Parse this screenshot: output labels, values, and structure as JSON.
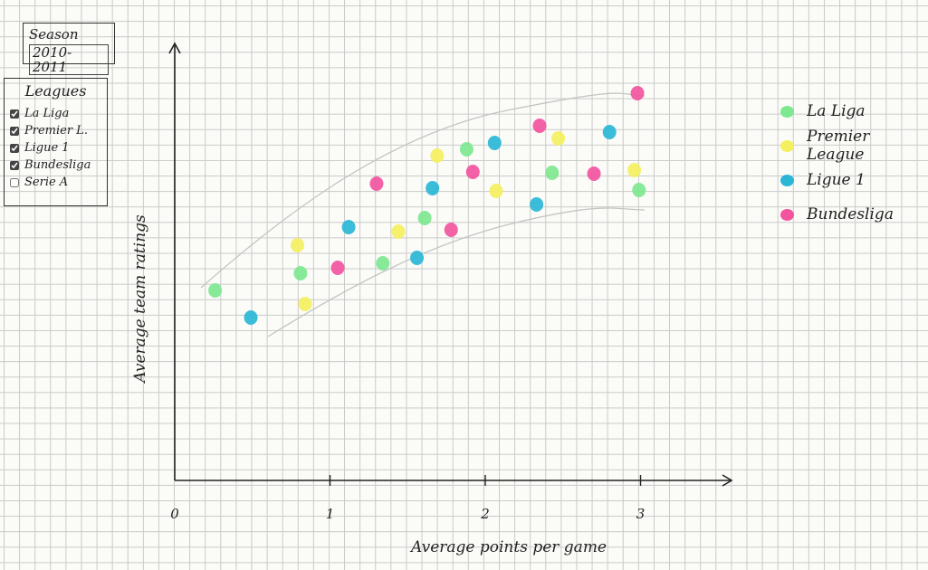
{
  "season": {
    "label": "Season",
    "value": "2010-2011"
  },
  "leagues_panel": {
    "title": "Leagues",
    "items": [
      {
        "label": "La Liga",
        "checked": true
      },
      {
        "label": "Premier L.",
        "checked": true
      },
      {
        "label": "Ligue 1",
        "checked": true
      },
      {
        "label": "Bundesliga",
        "checked": true
      },
      {
        "label": "Serie A",
        "checked": false
      }
    ]
  },
  "legend": [
    {
      "name": "La Liga",
      "color": "#7ee88f"
    },
    {
      "name": "Premier League",
      "color": "#f4f060"
    },
    {
      "name": "Ligue 1",
      "color": "#2ab7d6"
    },
    {
      "name": "Bundesliga",
      "color": "#f2559e"
    }
  ],
  "chart_data": {
    "type": "scatter",
    "xlabel": "Average points per game",
    "ylabel": "Average team ratings",
    "title": "",
    "xlim": [
      0,
      3.6
    ],
    "x_ticks": [
      0,
      1,
      2,
      3
    ],
    "x_tick_labels": [
      "0",
      "1",
      "2",
      "3"
    ],
    "y_tick_labels": [],
    "grid": true,
    "legend_position": "right",
    "trend_band": true,
    "series": [
      {
        "name": "La Liga",
        "color": "#7ee88f",
        "points": [
          [
            0.26,
            210
          ],
          [
            0.81,
            229
          ],
          [
            1.34,
            240
          ],
          [
            1.61,
            290
          ],
          [
            1.88,
            366
          ],
          [
            2.43,
            340
          ],
          [
            2.99,
            321
          ]
        ]
      },
      {
        "name": "Premier League",
        "color": "#f4f060",
        "points": [
          [
            0.79,
            260
          ],
          [
            0.84,
            195
          ],
          [
            1.44,
            275
          ],
          [
            1.69,
            359
          ],
          [
            2.07,
            320
          ],
          [
            2.47,
            378
          ],
          [
            2.96,
            343
          ]
        ]
      },
      {
        "name": "Ligue 1",
        "color": "#2ab7d6",
        "points": [
          [
            0.49,
            180
          ],
          [
            1.12,
            280
          ],
          [
            1.56,
            246
          ],
          [
            1.66,
            323
          ],
          [
            2.06,
            373
          ],
          [
            2.33,
            305
          ],
          [
            2.8,
            385
          ]
        ]
      },
      {
        "name": "Bundesliga",
        "color": "#f2559e",
        "points": [
          [
            1.05,
            235
          ],
          [
            1.3,
            328
          ],
          [
            1.78,
            277
          ],
          [
            1.92,
            341
          ],
          [
            2.35,
            392
          ],
          [
            2.7,
            339
          ],
          [
            2.98,
            428
          ]
        ]
      }
    ]
  }
}
